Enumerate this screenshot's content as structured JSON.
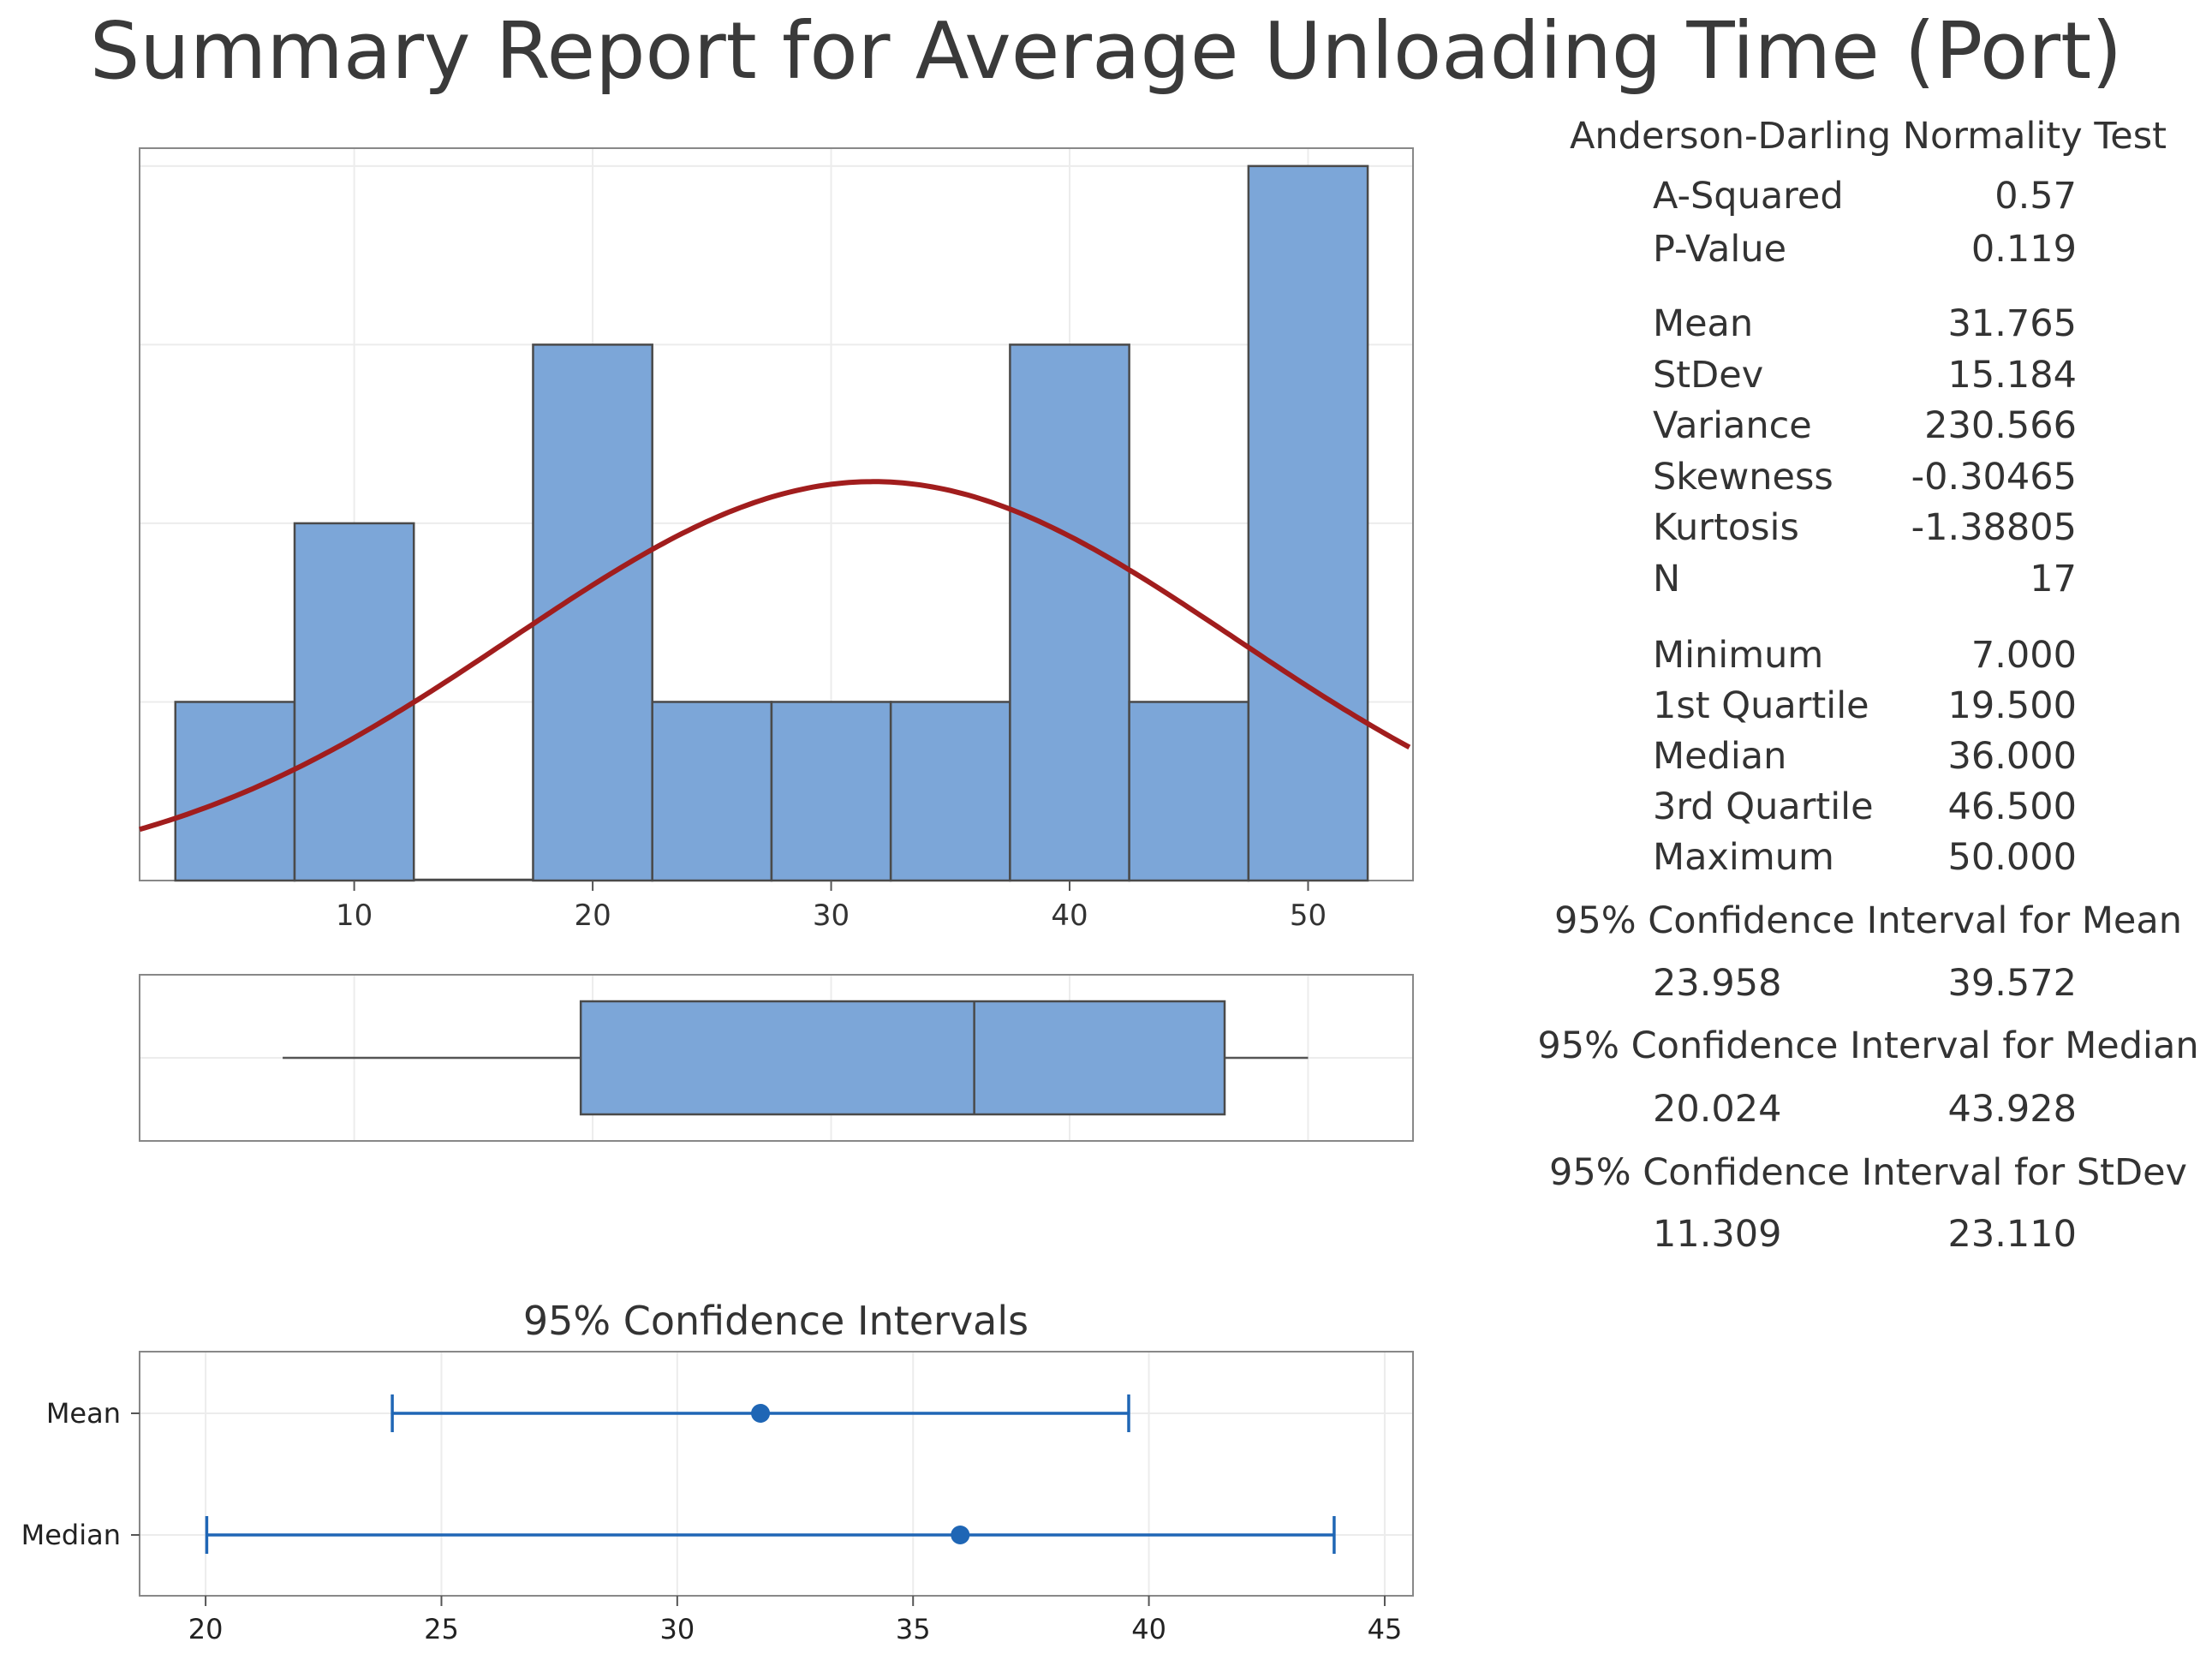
{
  "title": "Summary Report for Average Unloading Time (Port)",
  "colors": {
    "bar": "#7ca6d8",
    "bar_edge": "#4a4a4a",
    "curve": "#a11d1d",
    "ci": "#1f66b5",
    "grid": "#ececec",
    "frame": "#888888"
  },
  "stats": {
    "ad_heading": "Anderson-Darling Normality Test",
    "rows_ad": [
      {
        "label": "A-Squared",
        "value": "0.57"
      },
      {
        "label": "P-Value",
        "value": "0.119"
      }
    ],
    "rows_moments": [
      {
        "label": "Mean",
        "value": "31.765"
      },
      {
        "label": "StDev",
        "value": "15.184"
      },
      {
        "label": "Variance",
        "value": "230.566"
      },
      {
        "label": "Skewness",
        "value": "-0.30465"
      },
      {
        "label": "Kurtosis",
        "value": "-1.38805"
      },
      {
        "label": "N",
        "value": "17"
      }
    ],
    "rows_quantiles": [
      {
        "label": "Minimum",
        "value": "7.000"
      },
      {
        "label": "1st Quartile",
        "value": "19.500"
      },
      {
        "label": "Median",
        "value": "36.000"
      },
      {
        "label": "3rd Quartile",
        "value": "46.500"
      },
      {
        "label": "Maximum",
        "value": "50.000"
      }
    ],
    "ci_mean_heading": "95% Confidence Interval for Mean",
    "ci_mean": {
      "lo": "23.958",
      "hi": "39.572"
    },
    "ci_median_heading": "95% Confidence Interval for Median",
    "ci_median": {
      "lo": "20.024",
      "hi": "43.928"
    },
    "ci_stdev_heading": "95% Confidence Interval for StDev",
    "ci_stdev": {
      "lo": "11.309",
      "hi": "23.110"
    }
  },
  "chart_data": [
    {
      "type": "bar",
      "name": "histogram",
      "bin_width": 5,
      "bins": [
        {
          "center": 5,
          "count": 1
        },
        {
          "center": 10,
          "count": 2
        },
        {
          "center": 15,
          "count": 0
        },
        {
          "center": 20,
          "count": 3
        },
        {
          "center": 25,
          "count": 1
        },
        {
          "center": 30,
          "count": 1
        },
        {
          "center": 35,
          "count": 1
        },
        {
          "center": 40,
          "count": 3
        },
        {
          "center": 45,
          "count": 1
        },
        {
          "center": 50,
          "count": 4
        }
      ],
      "xlim": [
        1,
        54.4
      ],
      "ylim": [
        0,
        4.1
      ],
      "xticks": [
        10,
        20,
        30,
        40,
        50
      ],
      "normal_fit": {
        "mean": 31.765,
        "stdev": 15.184,
        "n": 17
      }
    },
    {
      "type": "box",
      "name": "boxplot",
      "whisker_low": 7,
      "q1": 19.5,
      "median": 36,
      "q3": 46.5,
      "whisker_high": 50,
      "xlim": [
        1,
        54.4
      ]
    },
    {
      "type": "interval",
      "name": "confidence-intervals",
      "title": "95% Confidence Intervals",
      "series": [
        {
          "name": "Mean",
          "lo": 23.958,
          "point": 31.765,
          "hi": 39.572
        },
        {
          "name": "Median",
          "lo": 20.024,
          "point": 36.0,
          "hi": 43.928
        }
      ],
      "xlim": [
        18.6,
        45.6
      ],
      "xticks": [
        20,
        25,
        30,
        35,
        40,
        45
      ]
    }
  ]
}
